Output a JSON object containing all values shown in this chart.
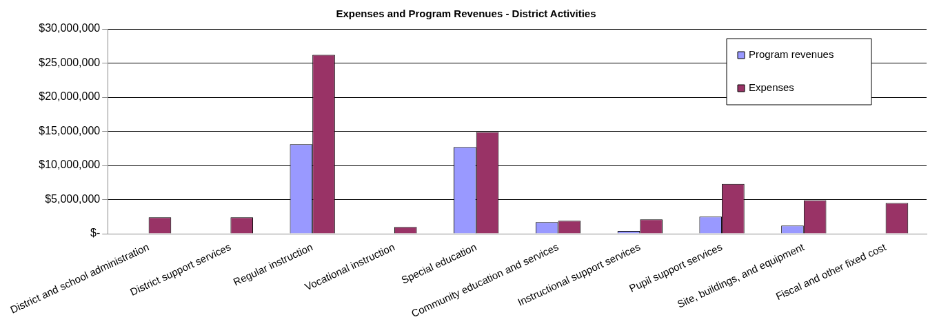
{
  "chart_data": {
    "type": "bar",
    "title": "Expenses and Program Revenues - District Activities",
    "categories": [
      "District and school administration",
      "District support services",
      "Regular instruction",
      "Vocational instruction",
      "Special education",
      "Community education and services",
      "Instructional support services",
      "Pupil support services",
      "Site, buildings, and equipment",
      "Fiscal and other fixed cost"
    ],
    "series": [
      {
        "name": "Program revenues",
        "color": "#9999ff",
        "values": [
          null,
          null,
          13100000,
          null,
          12700000,
          1700000,
          400000,
          2500000,
          1200000,
          null
        ]
      },
      {
        "name": "Expenses",
        "color": "#993366",
        "values": [
          2400000,
          2400000,
          26200000,
          1000000,
          14900000,
          1900000,
          2100000,
          7300000,
          4900000,
          4500000
        ]
      }
    ],
    "ylim": [
      0,
      30000000
    ],
    "yticks": [
      {
        "value": 0,
        "label": "$-"
      },
      {
        "value": 5000000,
        "label": "$5,000,000"
      },
      {
        "value": 10000000,
        "label": "$10,000,000"
      },
      {
        "value": 15000000,
        "label": "$15,000,000"
      },
      {
        "value": 20000000,
        "label": "$20,000,000"
      },
      {
        "value": 25000000,
        "label": "$25,000,000"
      },
      {
        "value": 30000000,
        "label": "$30,000,000"
      }
    ],
    "grid": "y",
    "legend": "top right"
  }
}
